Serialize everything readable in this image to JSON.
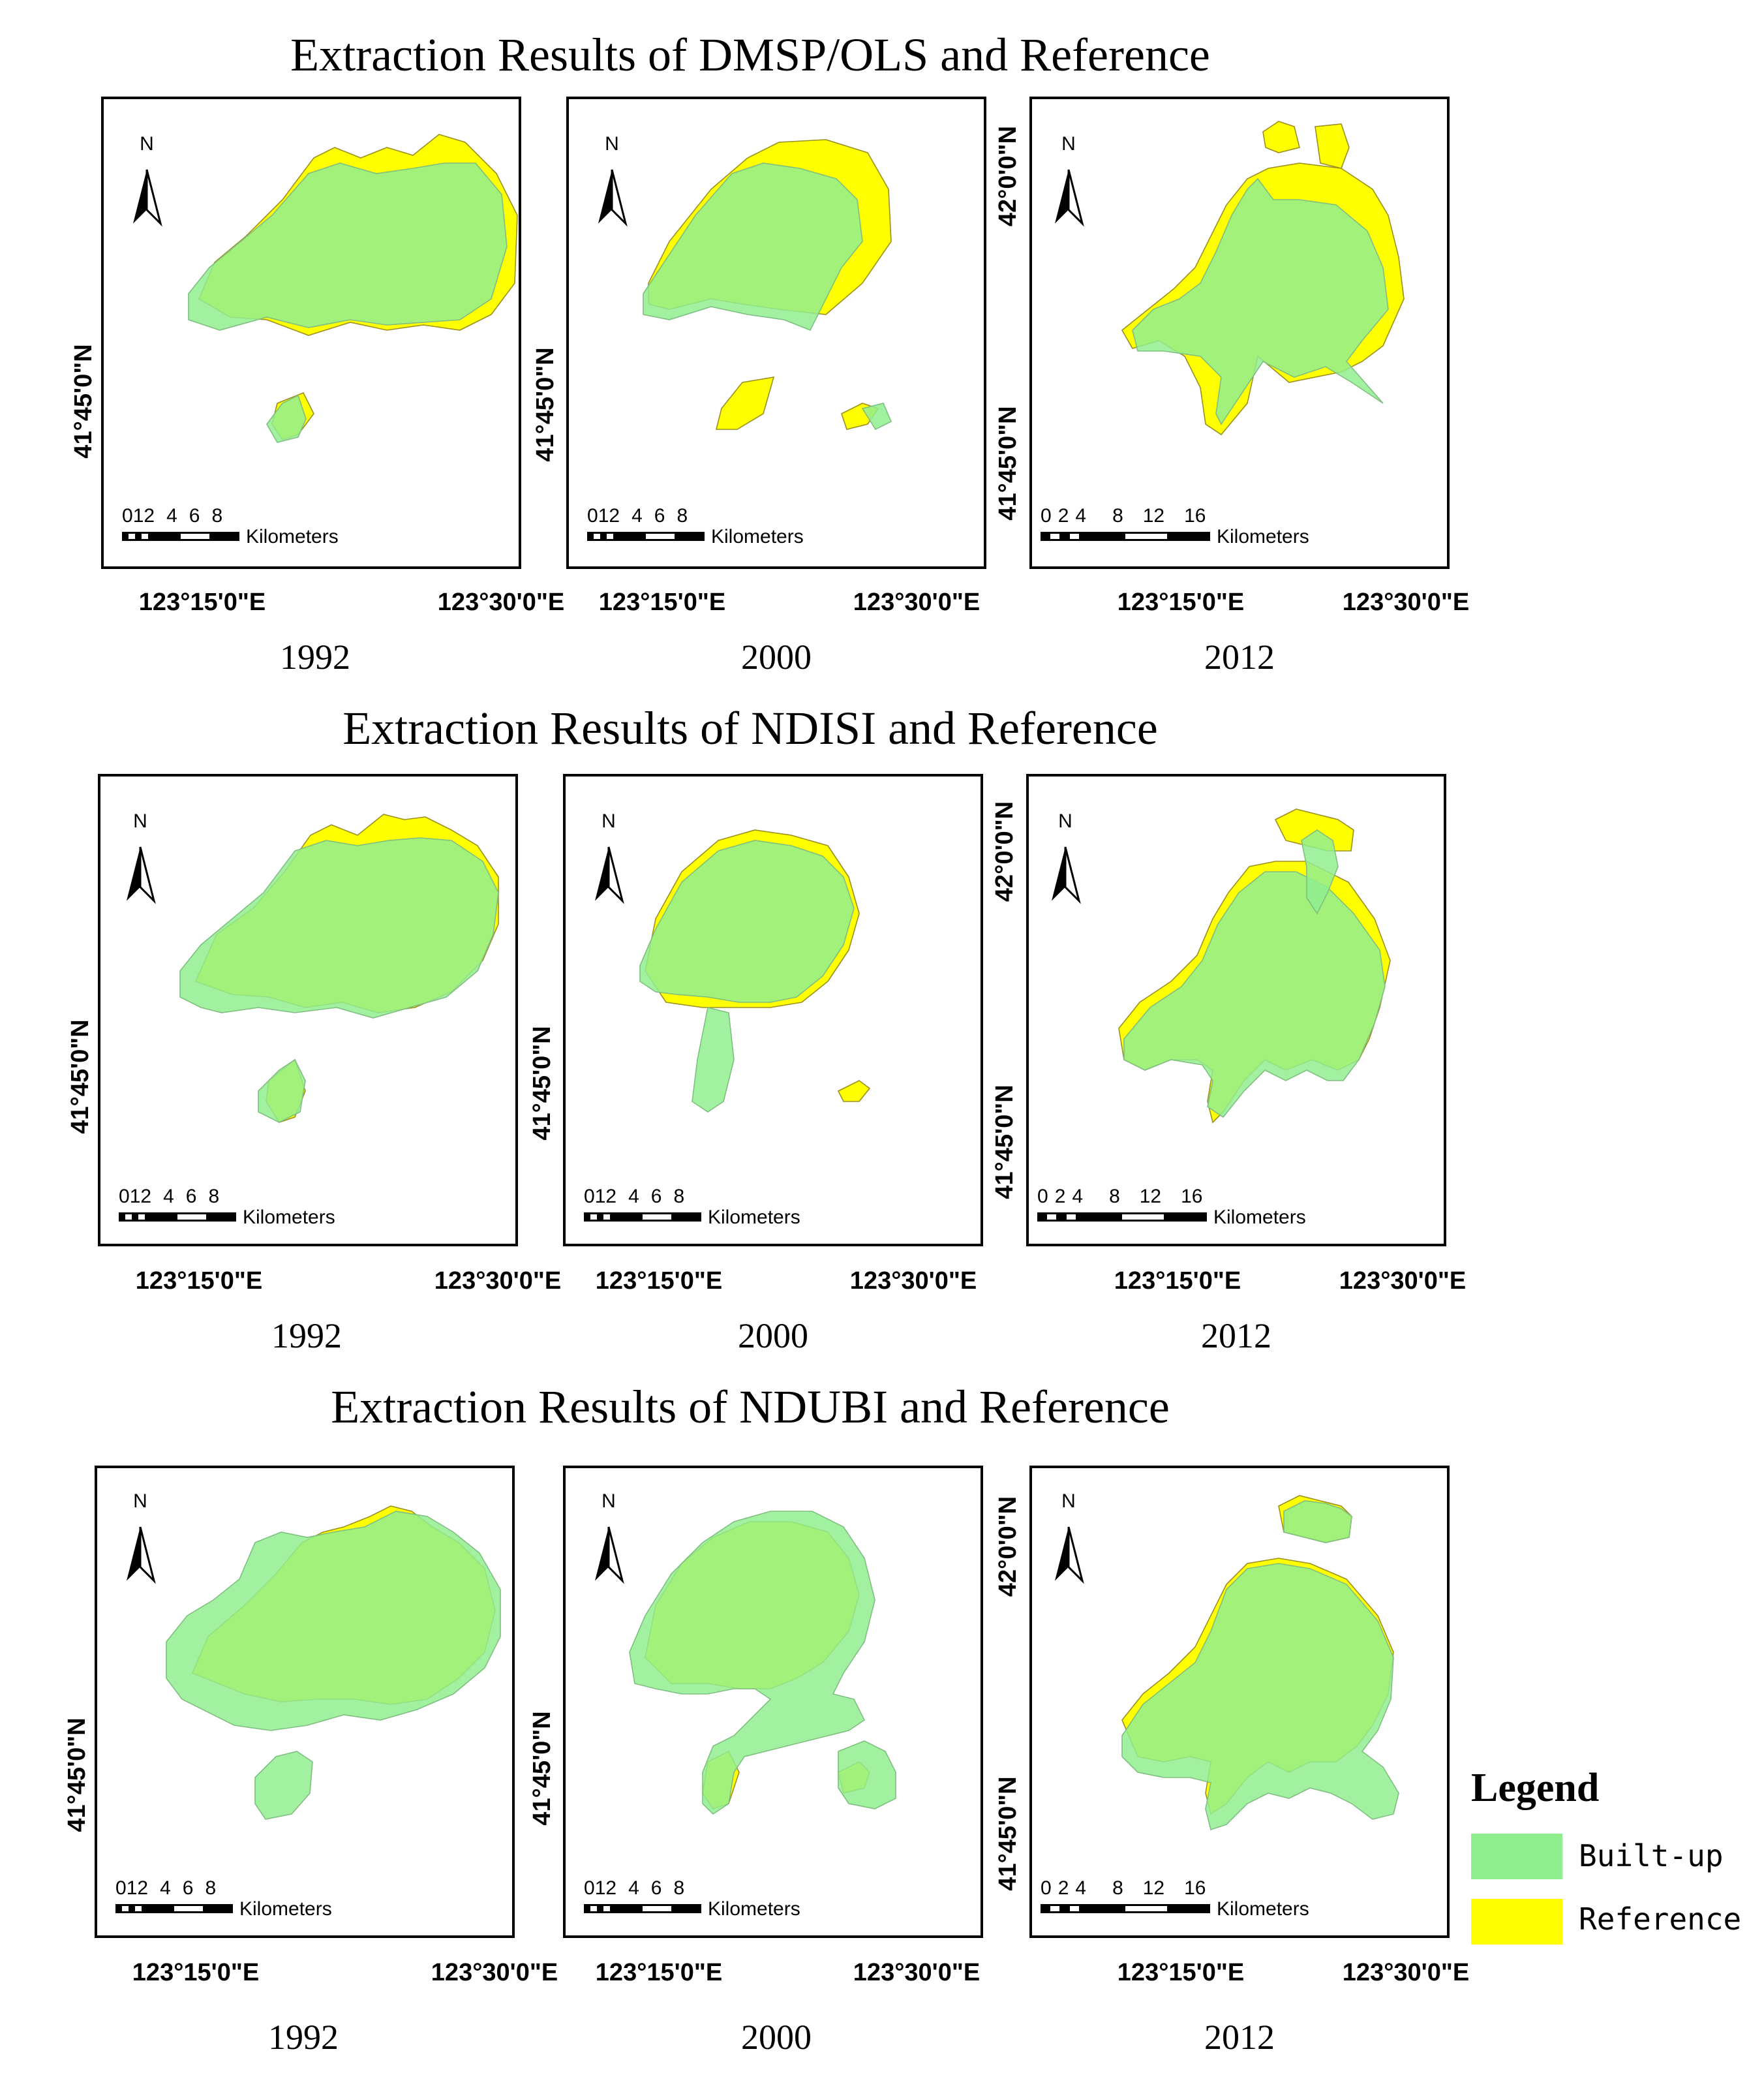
{
  "rows": [
    {
      "title": "Extraction Results of DMSP/OLS and Reference"
    },
    {
      "title": "Extraction Results of NDISI and Reference"
    },
    {
      "title": "Extraction Results of NDUBI and Reference"
    }
  ],
  "years": [
    "1992",
    "2000",
    "2012"
  ],
  "north_label": "N",
  "axis_labels": {
    "lon_left": "123°15'0\"E",
    "lon_right": "123°30'0\"E",
    "lat_mid": "41°45'0\"N",
    "lat_top": "42°0'0\"N"
  },
  "scalebars": {
    "small": {
      "ticks": [
        "0",
        "1",
        "2",
        "4",
        "6",
        "8"
      ],
      "unit": "Kilometers"
    },
    "large": {
      "ticks": [
        "0",
        "2",
        "4",
        "8",
        "12",
        "16"
      ],
      "unit": "Kilometers"
    }
  },
  "legend": {
    "title": "Legend",
    "items": [
      {
        "label": "Built-up",
        "color": "#90EE90"
      },
      {
        "label": "Reference",
        "color": "#FFFF00"
      }
    ]
  },
  "colors": {
    "builtup": "#90EE90",
    "reference": "#FFFF00",
    "overlap": "#A8F000",
    "frame": "#000000"
  }
}
